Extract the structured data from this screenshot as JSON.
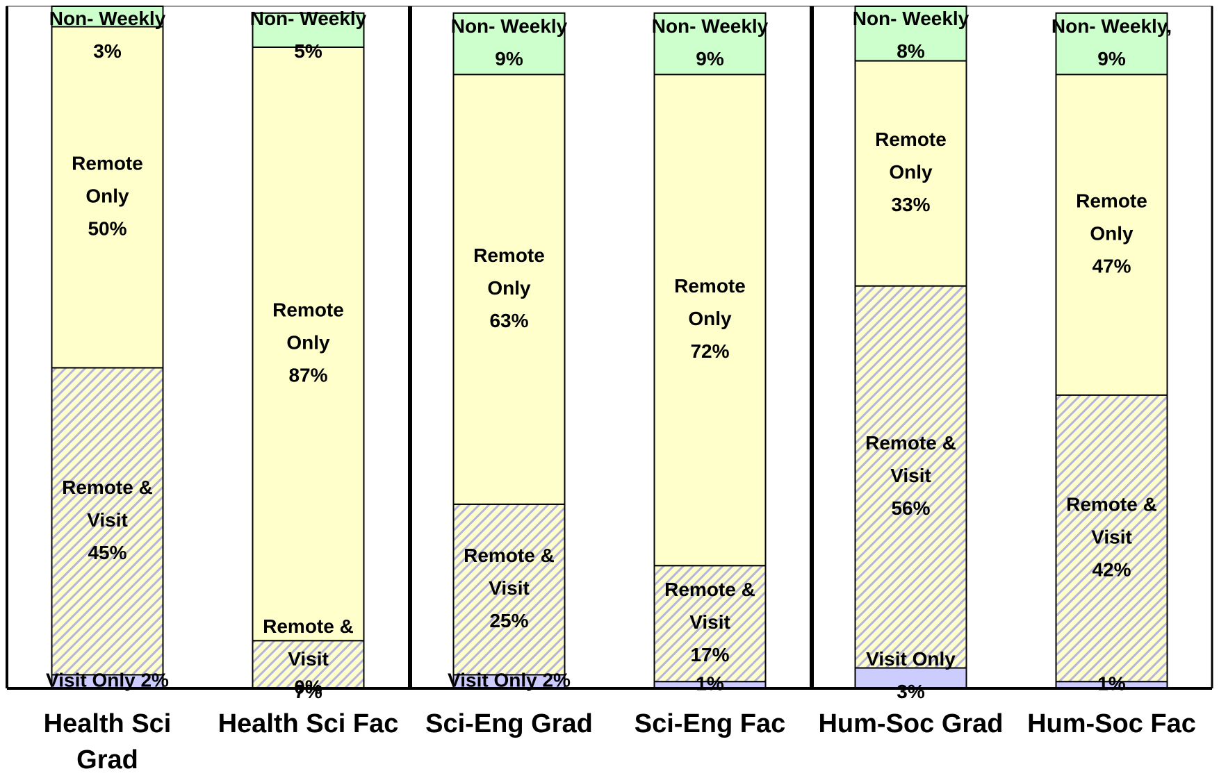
{
  "chart_data": {
    "type": "stacked_bar",
    "categories": [
      "Health Sci Grad",
      "Health Sci Fac",
      "Sci-Eng Grad",
      "Sci-Eng Fac",
      "Hum-Soc Grad",
      "Hum-Soc Fac"
    ],
    "ylim": [
      0,
      100
    ],
    "series": [
      {
        "color": "#ccccff",
        "values": [
          2,
          0,
          2,
          1,
          3,
          1
        ],
        "value_labels": [
          [
            "Visit Only 2%"
          ],
          [
            "0%"
          ],
          [
            "Visit Only 2%"
          ],
          [
            "1%"
          ],
          [
            "Visit Only",
            "3%"
          ],
          [
            "1%"
          ]
        ]
      },
      {
        "color": "#ffffcc",
        "hatch": "#b4b4dc",
        "values": [
          45,
          7,
          25,
          17,
          56,
          42
        ],
        "value_labels": [
          [
            "Remote &",
            "Visit",
            "45%"
          ],
          [
            "Remote &",
            "Visit",
            "7%"
          ],
          [
            "Remote &",
            "Visit",
            "25%"
          ],
          [
            "Remote &",
            "Visit",
            "17%"
          ],
          [
            "Remote &",
            "Visit",
            "56%"
          ],
          [
            "Remote &",
            "Visit",
            "42%"
          ]
        ]
      },
      {
        "color": "#ffffcc",
        "values": [
          50,
          87,
          63,
          72,
          33,
          47
        ],
        "value_labels": [
          [
            "Remote",
            "Only",
            "50%"
          ],
          [
            "Remote",
            "Only",
            "87%"
          ],
          [
            "Remote",
            "Only",
            "63%"
          ],
          [
            "Remote",
            "Only",
            "72%"
          ],
          [
            "Remote",
            "Only",
            "33%"
          ],
          [
            "Remote",
            "Only",
            "47%"
          ]
        ]
      },
      {
        "color": "#ccffcc",
        "values": [
          3,
          5,
          9,
          9,
          8,
          9
        ],
        "value_labels": [
          [
            "Non- Weekly",
            "3%"
          ],
          [
            "Non- Weekly",
            "5%"
          ],
          [
            "Non- Weekly",
            "9%"
          ],
          [
            "Non- Weekly",
            "9%"
          ],
          [
            "Non- Weekly",
            "8%"
          ],
          [
            "Non- Weekly,",
            "9%"
          ]
        ]
      }
    ]
  }
}
